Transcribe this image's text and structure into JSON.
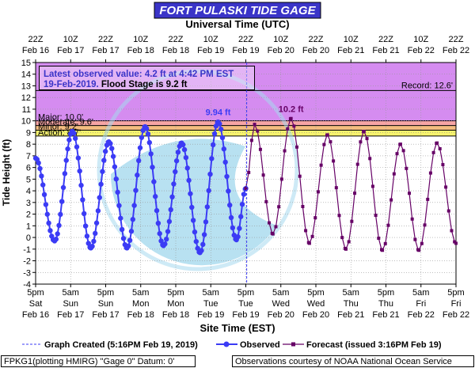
{
  "title": "FORT PULASKI TIDE GAGE",
  "colors": {
    "title_bg": "#3a34c8",
    "observed": "#3b3bf5",
    "forecast": "#660066",
    "major": "#d58cf0",
    "moderate": "#f7a5a5",
    "minor": "#f3bd80",
    "action": "#f6f36c",
    "logo": "#a6d9ee"
  },
  "chart_data": {
    "type": "line",
    "top_axis_label": "Universal Time (UTC)",
    "xlabel": "Site Time (EST)",
    "ylabel": "Tide Height (ft)",
    "ylim": [
      -4,
      15
    ],
    "xlim_hours": [
      0,
      144
    ],
    "yticks": [
      -4,
      -3,
      -2,
      -1,
      0,
      1,
      2,
      3,
      4,
      5,
      6,
      7,
      8,
      9,
      10,
      11,
      12,
      13,
      14,
      15
    ],
    "top_ticks": [
      {
        "l1": "22Z",
        "l2": "Feb 16"
      },
      {
        "l1": "10Z",
        "l2": "Feb 17"
      },
      {
        "l1": "22Z",
        "l2": "Feb 17"
      },
      {
        "l1": "10Z",
        "l2": "Feb 18"
      },
      {
        "l1": "22Z",
        "l2": "Feb 18"
      },
      {
        "l1": "10Z",
        "l2": "Feb 19"
      },
      {
        "l1": "22Z",
        "l2": "Feb 19"
      },
      {
        "l1": "10Z",
        "l2": "Feb 20"
      },
      {
        "l1": "22Z",
        "l2": "Feb 20"
      },
      {
        "l1": "10Z",
        "l2": "Feb 21"
      },
      {
        "l1": "22Z",
        "l2": "Feb 21"
      },
      {
        "l1": "10Z",
        "l2": "Feb 22"
      },
      {
        "l1": "22Z",
        "l2": "Feb 22"
      }
    ],
    "bottom_ticks": [
      {
        "l1": "5pm",
        "l2": "Sat",
        "l3": "Feb 16"
      },
      {
        "l1": "5am",
        "l2": "Sun",
        "l3": "Feb 17"
      },
      {
        "l1": "5pm",
        "l2": "Sun",
        "l3": "Feb 17"
      },
      {
        "l1": "5am",
        "l2": "Mon",
        "l3": "Feb 18"
      },
      {
        "l1": "5pm",
        "l2": "Mon",
        "l3": "Feb 18"
      },
      {
        "l1": "5am",
        "l2": "Tue",
        "l3": "Feb 19"
      },
      {
        "l1": "5pm",
        "l2": "Tue",
        "l3": "Feb 19"
      },
      {
        "l1": "5am",
        "l2": "Wed",
        "l3": "Feb 20"
      },
      {
        "l1": "5pm",
        "l2": "Wed",
        "l3": "Feb 20"
      },
      {
        "l1": "5am",
        "l2": "Thu",
        "l3": "Feb 21"
      },
      {
        "l1": "5pm",
        "l2": "Thu",
        "l3": "Feb 21"
      },
      {
        "l1": "5am",
        "l2": "Fri",
        "l3": "Feb 22"
      },
      {
        "l1": "5pm",
        "l2": "Fri",
        "l3": "Feb 22"
      }
    ],
    "flood_stages": [
      {
        "label": "Major: 10.0'",
        "from": 10.0,
        "to": 15.0,
        "color": "#d58cf0"
      },
      {
        "label": "Moderate: 9.6'",
        "from": 9.6,
        "to": 10.0,
        "color": "#f7a5a5"
      },
      {
        "label": "Minor: 9.2'",
        "from": 9.2,
        "to": 9.6,
        "color": "#f3bd80"
      },
      {
        "label": "Action: 8.7'",
        "from": 8.7,
        "to": 9.2,
        "color": "#f6f36c"
      }
    ],
    "record": {
      "label": "Record: 12.6'",
      "value": 12.6
    },
    "latest_box": {
      "line1": "Latest observed value: 4.2 ft at 4:42 PM EST",
      "line2_date": "19-Feb-2019.",
      "line2_rest": " Flood Stage is 9.2 ft"
    },
    "observed_peak_label": {
      "text": "9.94 ft",
      "hour": 117.5,
      "value": 9.94
    },
    "forecast_peak_label": {
      "text": "10.2 ft",
      "hour": 130.5,
      "value": 10.2
    },
    "created_hour": 0.3,
    "observed_extrema": [
      {
        "t": 0,
        "v": 6.8
      },
      {
        "t": 6.5,
        "v": -0.3
      },
      {
        "t": 12.6,
        "v": 9.1
      },
      {
        "t": 18.9,
        "v": -0.9
      },
      {
        "t": 25.1,
        "v": 8.2
      },
      {
        "t": 31.3,
        "v": -0.9
      },
      {
        "t": 37.5,
        "v": 9.5
      },
      {
        "t": 43.8,
        "v": -0.7
      },
      {
        "t": 50.0,
        "v": 8.1
      },
      {
        "t": 56.3,
        "v": -1.3
      },
      {
        "t": 62.5,
        "v": 9.9
      },
      {
        "t": 68.8,
        "v": -0.2
      },
      {
        "t": 72.0,
        "v": 4.2
      }
    ],
    "forecast_extrema": [
      {
        "t": 72.0,
        "v": 4.2
      },
      {
        "t": 75.0,
        "v": 9.7
      },
      {
        "t": 81.3,
        "v": 0.3
      },
      {
        "t": 87.5,
        "v": 10.2
      },
      {
        "t": 93.8,
        "v": -0.5
      },
      {
        "t": 100.0,
        "v": 8.8
      },
      {
        "t": 106.3,
        "v": -1.0
      },
      {
        "t": 112.5,
        "v": 9.1
      },
      {
        "t": 118.8,
        "v": -1.1
      },
      {
        "t": 125.0,
        "v": 8.0
      },
      {
        "t": 131.3,
        "v": -1.1
      },
      {
        "t": 137.5,
        "v": 8.1
      },
      {
        "t": 144.0,
        "v": -0.5
      }
    ]
  },
  "legend": {
    "created": "Graph Created (5:16PM Feb 19, 2019)",
    "observed": "Observed",
    "forecast": "Forecast (issued 3:16PM Feb 19)"
  },
  "footer": {
    "left": "FPKG1(plotting HMIRG) \"Gage 0\" Datum:  0'",
    "right": "Observations courtesy of NOAA National Ocean Service"
  }
}
